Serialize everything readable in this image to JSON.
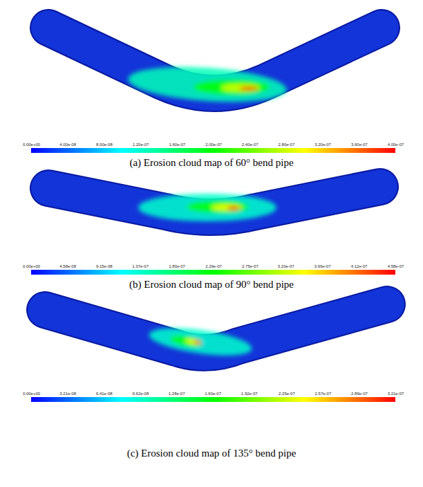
{
  "chart_data": [
    {
      "type": "heatmap",
      "title": "(a) Erosion cloud map of 60° bend pipe",
      "colorbar_range": [
        0,
        4e-07
      ],
      "colorbar_ticks": [
        {
          "value": 0,
          "label": "0.00e+00"
        },
        {
          "value": 4e-08,
          "label": "4.00e-08"
        },
        {
          "value": 8e-08,
          "label": "8.00e-08"
        },
        {
          "value": 1.2e-07,
          "label": "1.20e-07"
        },
        {
          "value": 1.6e-07,
          "label": "1.60e-07"
        },
        {
          "value": 2e-07,
          "label": "2.00e-07"
        },
        {
          "value": 2.4e-07,
          "label": "2.40e-07"
        },
        {
          "value": 2.8e-07,
          "label": "2.80e-07"
        },
        {
          "value": 3.2e-07,
          "label": "3.20e-07"
        },
        {
          "value": 3.6e-07,
          "label": "3.60e-07"
        },
        {
          "value": 4e-07,
          "label": "4.00e-07"
        }
      ]
    },
    {
      "type": "heatmap",
      "title": "(b) Erosion cloud map of 90° bend pipe",
      "colorbar_range": [
        0,
        4.58e-07
      ],
      "colorbar_ticks": [
        {
          "value": 0,
          "label": "0.00e+00"
        },
        {
          "value": 4.58e-08,
          "label": "4.58e-08"
        },
        {
          "value": 9.15e-08,
          "label": "9.15e-08"
        },
        {
          "value": 1.37e-07,
          "label": "1.37e-07"
        },
        {
          "value": 1.83e-07,
          "label": "1.83e-07"
        },
        {
          "value": 2.29e-07,
          "label": "2.29e-07"
        },
        {
          "value": 2.75e-07,
          "label": "2.75e-07"
        },
        {
          "value": 3.2e-07,
          "label": "3.20e-07"
        },
        {
          "value": 3.66e-07,
          "label": "3.66e-07"
        },
        {
          "value": 4.12e-07,
          "label": "4.12e-07"
        },
        {
          "value": 4.58e-07,
          "label": "4.58e-07"
        }
      ]
    },
    {
      "type": "heatmap",
      "title": "(c) Erosion cloud map of 135° bend pipe",
      "colorbar_range": [
        0,
        3.21e-07
      ],
      "colorbar_ticks": [
        {
          "value": 0,
          "label": "0.00e+00"
        },
        {
          "value": 3.21e-08,
          "label": "3.21e-08"
        },
        {
          "value": 6.41e-08,
          "label": "6.41e-08"
        },
        {
          "value": 9.62e-08,
          "label": "9.62e-08"
        },
        {
          "value": 1.28e-07,
          "label": "1.28e-07"
        },
        {
          "value": 1.6e-07,
          "label": "1.60e-07"
        },
        {
          "value": 1.92e-07,
          "label": "1.92e-07"
        },
        {
          "value": 2.25e-07,
          "label": "2.25e-07"
        },
        {
          "value": 2.57e-07,
          "label": "2.57e-07"
        },
        {
          "value": 2.89e-07,
          "label": "2.89e-07"
        },
        {
          "value": 3.21e-07,
          "label": "3.21e-07"
        }
      ]
    }
  ]
}
